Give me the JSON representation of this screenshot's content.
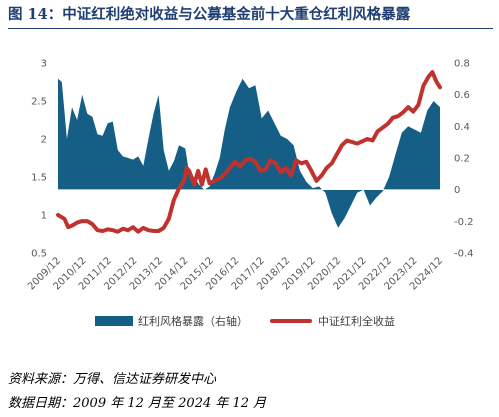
{
  "title": "图 14：中证红利绝对收益与公募基金前十大重仓红利风格暴露",
  "source_note": "资料来源：万得、信达证券研发中心",
  "date_note": "数据日期：2009 年 12 月至 2024 年 12 月",
  "colors": {
    "area": "#155f86",
    "line": "#c0322e"
  },
  "chart_data": {
    "type": "area+line",
    "x_labels": [
      "2009/12",
      "2010/12",
      "2011/12",
      "2012/12",
      "2013/12",
      "2014/12",
      "2015/12",
      "2016/12",
      "2017/12",
      "2018/12",
      "2019/12",
      "2020/12",
      "2021/12",
      "2022/12",
      "2023/12",
      "2024/12"
    ],
    "left_axis": {
      "min": 0.5,
      "max": 3,
      "ticks": [
        "0.5",
        "1",
        "1.5",
        "2",
        "2.5",
        "3"
      ]
    },
    "right_axis": {
      "min": -0.4,
      "max": 0.8,
      "ticks": [
        "-0.4",
        "-0.2",
        "0",
        "0.2",
        "0.4",
        "0.6",
        "0.8"
      ]
    },
    "grid": false,
    "legend_position": "bottom",
    "series": [
      {
        "name": "红利风格暴露（右轴）",
        "axis": "right",
        "style": "area",
        "x": [
          2009.95,
          2010.1,
          2010.3,
          2010.5,
          2010.7,
          2010.9,
          2011.1,
          2011.3,
          2011.5,
          2011.7,
          2011.9,
          2012.1,
          2012.3,
          2012.5,
          2012.7,
          2012.9,
          2013.1,
          2013.3,
          2013.5,
          2013.7,
          2013.9,
          2014.1,
          2014.3,
          2014.5,
          2014.7,
          2014.95,
          2015.1,
          2015.3,
          2015.5,
          2015.7,
          2015.9,
          2016.1,
          2016.3,
          2016.5,
          2016.7,
          2016.95,
          2017.2,
          2017.45,
          2017.7,
          2017.95,
          2018.2,
          2018.45,
          2018.7,
          2018.95,
          2019.2,
          2019.45,
          2019.7,
          2019.95,
          2020.2,
          2020.45,
          2020.7,
          2020.95,
          2021.2,
          2021.45,
          2021.7,
          2021.95,
          2022.2,
          2022.45,
          2022.7,
          2022.95,
          2023.2,
          2023.45,
          2023.7,
          2023.95,
          2024.2,
          2024.45,
          2024.7,
          2024.95
        ],
        "values": [
          0.7,
          0.68,
          0.32,
          0.52,
          0.44,
          0.6,
          0.48,
          0.46,
          0.35,
          0.34,
          0.42,
          0.43,
          0.25,
          0.21,
          0.2,
          0.19,
          0.21,
          0.15,
          0.32,
          0.48,
          0.6,
          0.25,
          0.12,
          0.18,
          0.28,
          0.26,
          0.1,
          0.08,
          0.03,
          0.0,
          0.02,
          0.1,
          0.2,
          0.38,
          0.52,
          0.62,
          0.7,
          0.64,
          0.66,
          0.45,
          0.5,
          0.42,
          0.34,
          0.32,
          0.28,
          0.12,
          0.05,
          0.01,
          0.02,
          -0.02,
          -0.15,
          -0.24,
          -0.18,
          -0.1,
          -0.02,
          0.0,
          -0.1,
          -0.05,
          -0.01,
          0.08,
          0.22,
          0.36,
          0.4,
          0.38,
          0.36,
          0.5,
          0.56,
          0.52
        ]
      },
      {
        "name": "中证红利全收益",
        "axis": "left",
        "style": "line",
        "x": [
          2009.95,
          2010.05,
          2010.2,
          2010.35,
          2010.5,
          2010.7,
          2010.9,
          2011.1,
          2011.3,
          2011.5,
          2011.7,
          2011.9,
          2012.1,
          2012.3,
          2012.5,
          2012.7,
          2012.9,
          2013.1,
          2013.3,
          2013.5,
          2013.7,
          2013.9,
          2014.1,
          2014.3,
          2014.5,
          2014.7,
          2014.9,
          2015.0,
          2015.1,
          2015.3,
          2015.45,
          2015.6,
          2015.75,
          2015.9,
          2016.1,
          2016.3,
          2016.5,
          2016.7,
          2016.9,
          2017.1,
          2017.3,
          2017.5,
          2017.7,
          2017.9,
          2018.1,
          2018.3,
          2018.5,
          2018.7,
          2018.9,
          2019.1,
          2019.3,
          2019.5,
          2019.7,
          2019.9,
          2020.1,
          2020.3,
          2020.5,
          2020.7,
          2020.9,
          2021.1,
          2021.3,
          2021.5,
          2021.7,
          2021.9,
          2022.1,
          2022.3,
          2022.5,
          2022.7,
          2022.9,
          2023.1,
          2023.3,
          2023.5,
          2023.7,
          2023.9,
          2024.1,
          2024.3,
          2024.5,
          2024.65,
          2024.8,
          2024.95
        ],
        "values": [
          1.0,
          0.98,
          0.95,
          0.84,
          0.86,
          0.9,
          0.92,
          0.92,
          0.88,
          0.8,
          0.79,
          0.81,
          0.8,
          0.78,
          0.82,
          0.8,
          0.84,
          0.78,
          0.83,
          0.8,
          0.79,
          0.79,
          0.83,
          0.95,
          1.2,
          1.35,
          1.45,
          1.62,
          1.58,
          1.4,
          1.58,
          1.4,
          1.6,
          1.42,
          1.45,
          1.48,
          1.54,
          1.62,
          1.7,
          1.64,
          1.72,
          1.74,
          1.7,
          1.58,
          1.6,
          1.72,
          1.68,
          1.56,
          1.62,
          1.52,
          1.72,
          1.68,
          1.7,
          1.58,
          1.45,
          1.52,
          1.62,
          1.68,
          1.8,
          1.92,
          1.98,
          1.96,
          1.94,
          1.97,
          2.0,
          1.98,
          2.1,
          2.15,
          2.2,
          2.28,
          2.3,
          2.35,
          2.42,
          2.36,
          2.45,
          2.7,
          2.82,
          2.88,
          2.76,
          2.68
        ]
      }
    ]
  }
}
